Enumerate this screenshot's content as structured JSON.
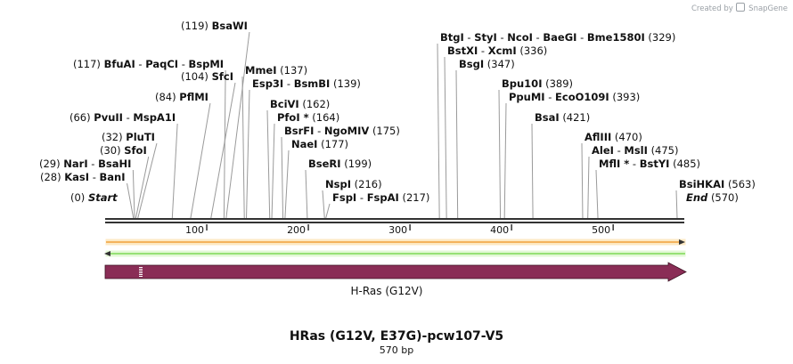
{
  "credit": {
    "prefix": "Created by",
    "brand": "SnapGene"
  },
  "title": "HRas (G12V, E37G)-pcw107-V5",
  "subtitle": "570 bp",
  "sequence_length": 570,
  "ruler": {
    "ticks": [
      100,
      200,
      300,
      400,
      500
    ]
  },
  "features": [
    {
      "name": "H-Ras (G12V)",
      "type": "CDS",
      "start": 1,
      "end": 570,
      "color": "#8a2d56",
      "direction": "forward"
    }
  ],
  "strands": {
    "forward_color": "#f2a13b",
    "reverse_color": "#7ed957"
  },
  "cut_labels": [
    {
      "parts": [
        "BsaWI"
      ],
      "pos": "(119)",
      "pos_side": "left"
    },
    {
      "parts": [
        "BfuAI",
        "PaqCI",
        "BspMI"
      ],
      "pos": "(117)",
      "pos_side": "left"
    },
    {
      "parts": [
        "SfcI"
      ],
      "pos": "(104)",
      "pos_side": "left"
    },
    {
      "parts": [
        "PflMI"
      ],
      "pos": "(84)",
      "pos_side": "left"
    },
    {
      "parts": [
        "PvuII",
        "MspA1I"
      ],
      "pos": "(66)",
      "pos_side": "left"
    },
    {
      "parts": [
        "PluTI"
      ],
      "pos": "(32)",
      "pos_side": "left"
    },
    {
      "parts": [
        "SfoI"
      ],
      "pos": "(30)",
      "pos_side": "left"
    },
    {
      "parts": [
        "NarI",
        "BsaHI"
      ],
      "pos": "(29)",
      "pos_side": "left"
    },
    {
      "parts": [
        "KasI",
        "BanI"
      ],
      "pos": "(28)",
      "pos_side": "left"
    },
    {
      "parts": [
        "Start"
      ],
      "pos": "(0)",
      "pos_side": "left",
      "italic": true
    },
    {
      "parts": [
        "MmeI"
      ],
      "pos": "(137)",
      "pos_side": "right"
    },
    {
      "parts": [
        "Esp3I",
        "BsmBI"
      ],
      "pos": "(139)",
      "pos_side": "right"
    },
    {
      "parts": [
        "BciVI"
      ],
      "pos": "(162)",
      "pos_side": "right"
    },
    {
      "parts": [
        "PfoI *"
      ],
      "pos": "(164)",
      "pos_side": "right"
    },
    {
      "parts": [
        "BsrFI",
        "NgoMIV"
      ],
      "pos": "(175)",
      "pos_side": "right"
    },
    {
      "parts": [
        "NaeI"
      ],
      "pos": "(177)",
      "pos_side": "right"
    },
    {
      "parts": [
        "BseRI"
      ],
      "pos": "(199)",
      "pos_side": "right"
    },
    {
      "parts": [
        "NspI"
      ],
      "pos": "(216)",
      "pos_side": "right"
    },
    {
      "parts": [
        "FspI",
        "FspAI"
      ],
      "pos": "(217)",
      "pos_side": "right"
    },
    {
      "parts": [
        "BtgI",
        "StyI",
        "NcoI",
        "BaeGI",
        "Bme1580I"
      ],
      "pos": "(329)",
      "pos_side": "right"
    },
    {
      "parts": [
        "BstXI",
        "XcmI"
      ],
      "pos": "(336)",
      "pos_side": "right"
    },
    {
      "parts": [
        "BsgI"
      ],
      "pos": "(347)",
      "pos_side": "right"
    },
    {
      "parts": [
        "Bpu10I"
      ],
      "pos": "(389)",
      "pos_side": "right"
    },
    {
      "parts": [
        "PpuMI",
        "EcoO109I"
      ],
      "pos": "(393)",
      "pos_side": "right"
    },
    {
      "parts": [
        "BsaI"
      ],
      "pos": "(421)",
      "pos_side": "right"
    },
    {
      "parts": [
        "AflIII"
      ],
      "pos": "(470)",
      "pos_side": "right"
    },
    {
      "parts": [
        "AleI",
        "MslI"
      ],
      "pos": "(475)",
      "pos_side": "right"
    },
    {
      "parts": [
        "MflI *",
        "BstYI"
      ],
      "pos": "(485)",
      "pos_side": "right"
    },
    {
      "parts": [
        "BsiHKAI"
      ],
      "pos": "(563)",
      "pos_side": "right"
    },
    {
      "parts": [
        "End"
      ],
      "pos": "(570)",
      "pos_side": "right",
      "italic": true
    }
  ]
}
